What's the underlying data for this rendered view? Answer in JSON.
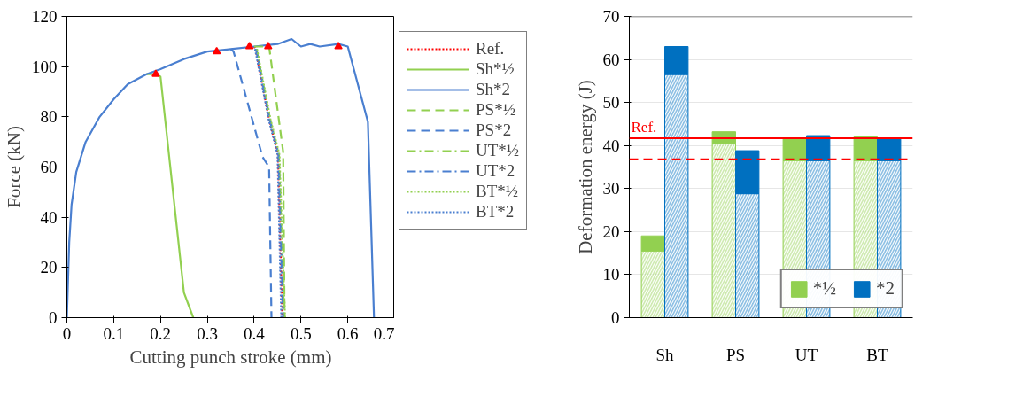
{
  "chart_data": [
    {
      "type": "line",
      "xlabel": "Cutting punch stroke (mm)",
      "ylabel": "Force (kN)",
      "xlim": [
        0,
        0.7
      ],
      "ylim": [
        0,
        120
      ],
      "xticks": [
        0,
        0.1,
        0.2,
        0.3,
        0.4,
        0.5,
        0.6,
        0.7
      ],
      "yticks": [
        0,
        20,
        40,
        60,
        80,
        100,
        120
      ],
      "grid": false,
      "legend": "right",
      "marker": "none",
      "series": [
        {
          "name": "Ref.",
          "color": "#ff0000",
          "line_style": "dotted",
          "x": [
            0.4,
            0.403,
            0.432,
            0.451,
            0.46
          ],
          "values": [
            108,
            107,
            79,
            65,
            0
          ]
        },
        {
          "name": "Sh*½",
          "color": "#92d050",
          "line_style": "solid",
          "x": [
            0.17,
            0.19,
            0.2,
            0.25,
            0.27
          ],
          "values": [
            97,
            97,
            96,
            10,
            0
          ]
        },
        {
          "name": "Sh*2",
          "color": "#4a7fd0",
          "line_style": "solid",
          "x": [
            0,
            0.005,
            0.01,
            0.02,
            0.04,
            0.07,
            0.1,
            0.13,
            0.17,
            0.2,
            0.25,
            0.3,
            0.35,
            0.4,
            0.45,
            0.48,
            0.5,
            0.52,
            0.54,
            0.58,
            0.6,
            0.643,
            0.656
          ],
          "values": [
            0,
            30,
            45,
            58,
            70,
            80,
            87,
            93,
            97,
            99,
            103,
            106,
            107,
            108,
            109,
            111,
            108,
            109,
            108,
            109,
            108,
            78,
            0
          ]
        },
        {
          "name": "PS*½",
          "color": "#92d050",
          "line_style": "dashed",
          "x": [
            0.4,
            0.432,
            0.462,
            0.465
          ],
          "values": [
            108,
            108,
            66,
            0
          ]
        },
        {
          "name": "PS*2",
          "color": "#4a7fd0",
          "line_style": "dashed",
          "x": [
            0.35,
            0.356,
            0.418,
            0.432,
            0.437
          ],
          "values": [
            107,
            106,
            64,
            60,
            0
          ]
        },
        {
          "name": "UT*½",
          "color": "#92d050",
          "line_style": "dashdot",
          "x": [
            0.405,
            0.434,
            0.453,
            0.464
          ],
          "values": [
            107,
            79,
            65,
            0
          ]
        },
        {
          "name": "UT*2",
          "color": "#4a7fd0",
          "line_style": "dashdot",
          "x": [
            0.404,
            0.433,
            0.452,
            0.462
          ],
          "values": [
            107,
            79,
            65,
            0
          ]
        },
        {
          "name": "BT*½",
          "color": "#92d050",
          "line_style": "dotted",
          "x": [
            0.406,
            0.435,
            0.454,
            0.466
          ],
          "values": [
            107,
            79,
            65,
            0
          ]
        },
        {
          "name": "BT*2",
          "color": "#4a7fd0",
          "line_style": "dotted",
          "x": [
            0.402,
            0.431,
            0.45,
            0.458
          ],
          "values": [
            107,
            79,
            65,
            0
          ]
        },
        {
          "type": "scatter",
          "marker": "triangle",
          "color": "#ff0000",
          "x": [
            0.19,
            0.32,
            0.39,
            0.43,
            0.58
          ],
          "values": [
            97,
            106,
            108,
            108,
            108
          ]
        }
      ]
    },
    {
      "type": "bar",
      "ylabel": "Deformation energy (J)",
      "categories": [
        "Sh",
        "PS",
        "UT",
        "BT"
      ],
      "ylim": [
        0,
        70
      ],
      "yticks": [
        0,
        10,
        20,
        30,
        40,
        50,
        60,
        70
      ],
      "grid": "y",
      "legend": "bottom right",
      "series": [
        {
          "color": "#92d050",
          "values": [
            15.5,
            40.5,
            36.5,
            36.5
          ]
        },
        {
          "name": "*½",
          "color": "#92d050",
          "base": [
            15.5,
            40.5,
            36.5,
            36.5
          ],
          "values": [
            3.5,
            2.7,
            5,
            5.5
          ]
        },
        {
          "color": "#0070c0",
          "values": [
            56.5,
            28.8,
            36.5,
            36.5
          ]
        },
        {
          "name": "*2",
          "color": "#0070c0",
          "base": [
            56.5,
            28.8,
            36.5,
            36.5
          ],
          "values": [
            6.5,
            10,
            5.8,
            5
          ]
        }
      ],
      "ref_lines": [
        {
          "axis": "y",
          "value": 41.7,
          "label": "Ref.",
          "color": "#ff0000",
          "line_style": "solid"
        },
        {
          "axis": "y",
          "value": 36.8,
          "color": "#ff0000",
          "line_style": "dashed"
        }
      ]
    }
  ]
}
